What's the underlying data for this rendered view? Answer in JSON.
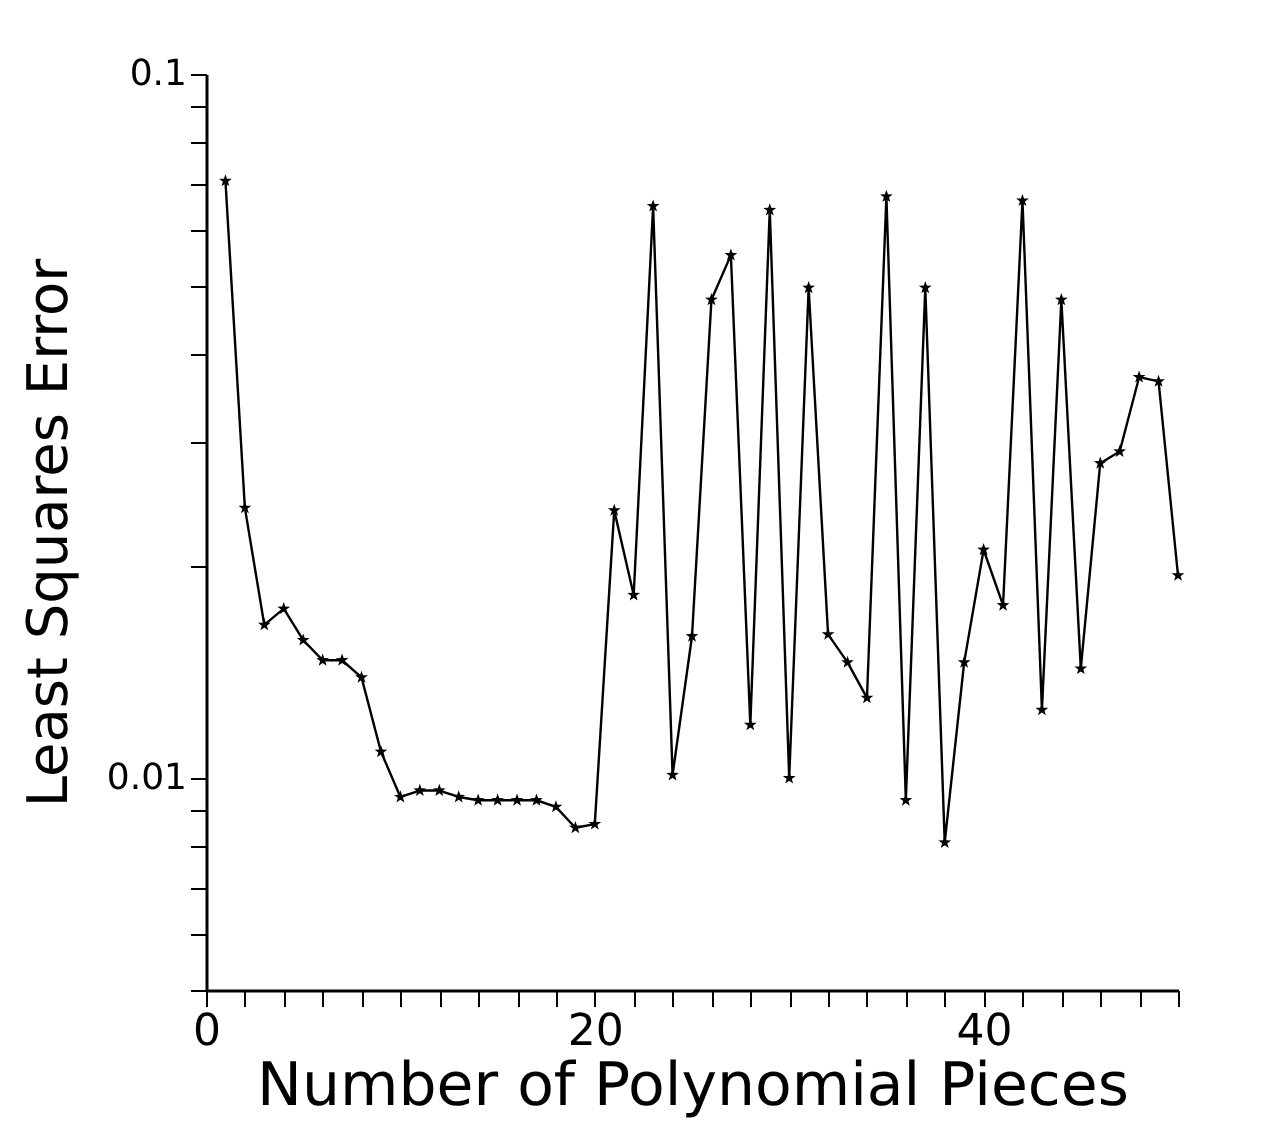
{
  "chart_data": {
    "type": "line",
    "xlabel": "Number of Polynomial Pieces",
    "ylabel": "Least Squares Error",
    "x": [
      1,
      2,
      3,
      4,
      5,
      6,
      7,
      8,
      9,
      10,
      11,
      12,
      13,
      14,
      15,
      16,
      17,
      18,
      19,
      20,
      21,
      22,
      23,
      24,
      25,
      26,
      27,
      28,
      29,
      30,
      31,
      32,
      33,
      34,
      35,
      36,
      37,
      38,
      39,
      40,
      41,
      42,
      43,
      44,
      45,
      46,
      47,
      48,
      49,
      50
    ],
    "series": [
      {
        "color": "#000000",
        "values": [
          0.0705,
          0.0242,
          0.0165,
          0.0174,
          0.0157,
          0.0147,
          0.0147,
          0.0139,
          0.0109,
          0.0094,
          0.0096,
          0.0096,
          0.0094,
          0.0093,
          0.0093,
          0.0093,
          0.0093,
          0.0091,
          0.0085,
          0.0086,
          0.024,
          0.0182,
          0.0649,
          0.0101,
          0.0159,
          0.0478,
          0.0553,
          0.0119,
          0.0641,
          0.01,
          0.0497,
          0.016,
          0.0146,
          0.013,
          0.067,
          0.0093,
          0.0497,
          0.0081,
          0.0146,
          0.0211,
          0.0176,
          0.0661,
          0.0125,
          0.0478,
          0.0143,
          0.028,
          0.0291,
          0.0371,
          0.0366,
          0.0194
        ]
      }
    ],
    "log": "y",
    "xlim": [
      0,
      50
    ],
    "ylim": [
      0.005,
      0.1
    ],
    "xticks": [
      0,
      {
        "value": 2,
        "label": null
      },
      {
        "value": 4,
        "label": null
      },
      {
        "value": 6,
        "label": null
      },
      {
        "value": 8,
        "label": null
      },
      {
        "value": 10,
        "label": null
      },
      {
        "value": 12,
        "label": null
      },
      {
        "value": 14,
        "label": null
      },
      {
        "value": 16,
        "label": null
      },
      {
        "value": 18,
        "label": null
      },
      20,
      {
        "value": 22,
        "label": null
      },
      {
        "value": 24,
        "label": null
      },
      {
        "value": 26,
        "label": null
      },
      {
        "value": 28,
        "label": null
      },
      {
        "value": 30,
        "label": null
      },
      {
        "value": 32,
        "label": null
      },
      {
        "value": 34,
        "label": null
      },
      {
        "value": 36,
        "label": null
      },
      {
        "value": 38,
        "label": null
      },
      40,
      {
        "value": 42,
        "label": null
      },
      {
        "value": 44,
        "label": null
      },
      {
        "value": 46,
        "label": null
      },
      {
        "value": 48,
        "label": null
      },
      {
        "value": 50,
        "label": null
      }
    ],
    "yticks": [
      {
        "value": 0.005,
        "label": null
      },
      {
        "value": 0.006,
        "label": null
      },
      {
        "value": 0.007,
        "label": null
      },
      {
        "value": 0.008,
        "label": null
      },
      {
        "value": 0.009,
        "label": null
      },
      0.01,
      {
        "value": 0.02,
        "label": null
      },
      {
        "value": 0.03,
        "label": null
      },
      {
        "value": 0.04,
        "label": null
      },
      {
        "value": 0.05,
        "label": null
      },
      {
        "value": 0.06,
        "label": null
      },
      {
        "value": 0.07,
        "label": null
      },
      {
        "value": 0.08,
        "label": null
      },
      {
        "value": 0.09,
        "label": null
      },
      0.1
    ],
    "marker": "star",
    "line_style": "solid",
    "grid": false,
    "legend": false
  }
}
